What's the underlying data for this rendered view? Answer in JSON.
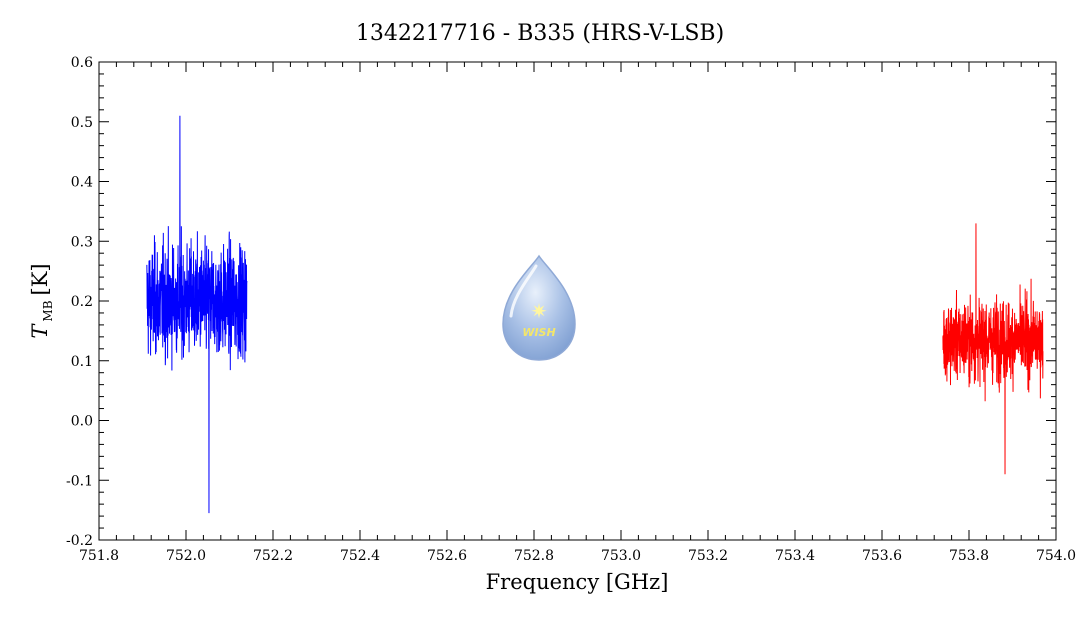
{
  "chart_data": {
    "type": "line",
    "title": "1342217716 - B335 (HRS-V-LSB)",
    "xlabel": "Frequency [GHz]",
    "ylabel_main": "T",
    "ylabel_sub": "MB",
    "ylabel_unit": "[K]",
    "xlim": [
      751.8,
      754.0
    ],
    "ylim": [
      -0.2,
      0.6
    ],
    "x_ticks": [
      "751.8",
      "752.0",
      "752.2",
      "752.4",
      "752.6",
      "752.8",
      "753.0",
      "753.2",
      "753.4",
      "753.6",
      "753.8",
      "754.0"
    ],
    "y_ticks": [
      "-0.2",
      "-0.1",
      "0.0",
      "0.1",
      "0.2",
      "0.3",
      "0.4",
      "0.5",
      "0.6"
    ],
    "grid": false,
    "series": [
      {
        "color": "#0000ff",
        "x_range": [
          751.91,
          752.14
        ],
        "baseline": 0.2,
        "noise_amplitude": 0.14,
        "min": -0.155,
        "max": 0.51
      },
      {
        "color": "#ff0000",
        "x_range": [
          753.74,
          753.97
        ],
        "baseline": 0.135,
        "noise_amplitude": 0.1,
        "min": -0.09,
        "max": 0.33
      }
    ],
    "logo_text": "WISH"
  }
}
